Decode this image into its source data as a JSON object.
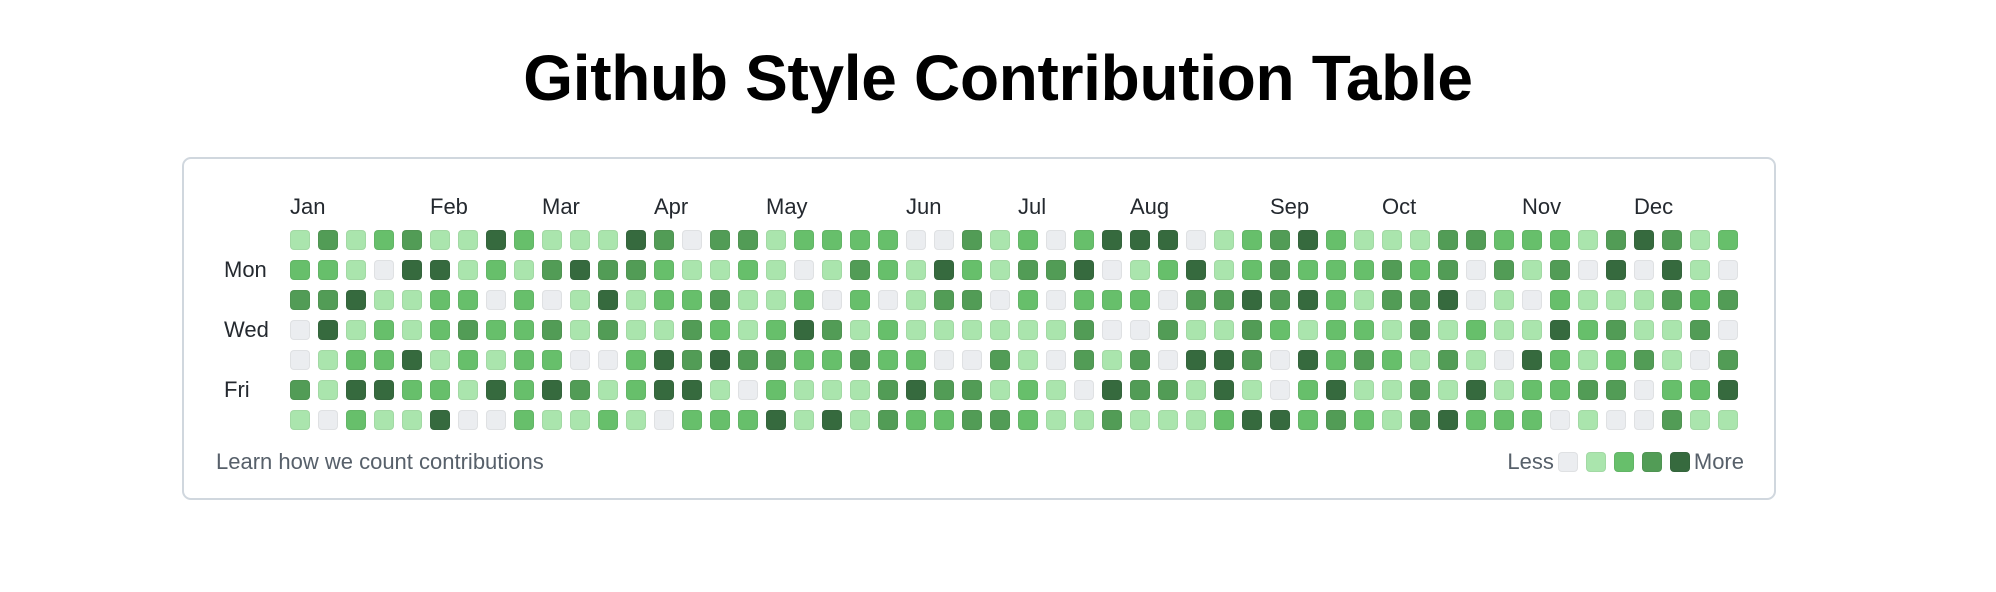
{
  "page": {
    "title": "Github Style Contribution Table"
  },
  "calendar": {
    "months": [
      {
        "label": "Jan",
        "col": 0
      },
      {
        "label": "Feb",
        "col": 5
      },
      {
        "label": "Mar",
        "col": 9
      },
      {
        "label": "Apr",
        "col": 13
      },
      {
        "label": "May",
        "col": 17
      },
      {
        "label": "Jun",
        "col": 22
      },
      {
        "label": "Jul",
        "col": 26
      },
      {
        "label": "Aug",
        "col": 30
      },
      {
        "label": "Sep",
        "col": 35
      },
      {
        "label": "Oct",
        "col": 39
      },
      {
        "label": "Nov",
        "col": 44
      },
      {
        "label": "Dec",
        "col": 48
      }
    ],
    "day_labels": [
      {
        "label": "Mon",
        "row": 1
      },
      {
        "label": "Wed",
        "row": 3
      },
      {
        "label": "Fri",
        "row": 5
      }
    ],
    "level_colors": [
      "#ebedf0",
      "#aae5ad",
      "#67bf6b",
      "#529c56",
      "#366a3e"
    ],
    "rows": [
      [
        1,
        3,
        1,
        2,
        3,
        1,
        1,
        4,
        2,
        1,
        1,
        1,
        4,
        3,
        0,
        3,
        3,
        1,
        2,
        2,
        2,
        2,
        0,
        0,
        3,
        1,
        2,
        0,
        2,
        4,
        4,
        4,
        0,
        1,
        2,
        3,
        4,
        2,
        1,
        1,
        1,
        3,
        3,
        2,
        2,
        2,
        1,
        3,
        4,
        3,
        1,
        2
      ],
      [
        2,
        2,
        1,
        0,
        4,
        4,
        1,
        2,
        1,
        3,
        4,
        3,
        3,
        2,
        1,
        1,
        2,
        1,
        0,
        1,
        3,
        2,
        1,
        4,
        2,
        1,
        3,
        3,
        4,
        0,
        1,
        2,
        4,
        1,
        2,
        3,
        2,
        2,
        2,
        3,
        2,
        3,
        0,
        3,
        1,
        3,
        0,
        4,
        0,
        4,
        1,
        0
      ],
      [
        3,
        3,
        4,
        1,
        1,
        2,
        2,
        0,
        2,
        0,
        1,
        4,
        1,
        2,
        2,
        3,
        1,
        1,
        2,
        0,
        2,
        0,
        1,
        3,
        3,
        0,
        2,
        0,
        2,
        2,
        2,
        0,
        3,
        3,
        4,
        3,
        4,
        2,
        1,
        3,
        3,
        4,
        0,
        1,
        0,
        2,
        1,
        1,
        1,
        3,
        2,
        3
      ],
      [
        0,
        4,
        1,
        2,
        1,
        2,
        3,
        2,
        2,
        3,
        1,
        3,
        1,
        1,
        3,
        2,
        1,
        2,
        4,
        3,
        1,
        2,
        1,
        1,
        1,
        1,
        1,
        1,
        3,
        0,
        0,
        3,
        1,
        1,
        3,
        2,
        1,
        2,
        2,
        1,
        3,
        1,
        2,
        1,
        1,
        4,
        2,
        3,
        1,
        1,
        3,
        0
      ],
      [
        0,
        1,
        2,
        2,
        4,
        1,
        2,
        1,
        2,
        2,
        0,
        0,
        2,
        4,
        3,
        4,
        3,
        3,
        2,
        2,
        3,
        2,
        2,
        0,
        0,
        3,
        1,
        0,
        3,
        1,
        3,
        0,
        4,
        4,
        3,
        0,
        4,
        2,
        3,
        2,
        1,
        3,
        1,
        0,
        4,
        2,
        1,
        2,
        3,
        1,
        0,
        3
      ],
      [
        3,
        1,
        4,
        4,
        2,
        2,
        1,
        4,
        2,
        4,
        3,
        1,
        2,
        4,
        4,
        1,
        0,
        2,
        1,
        1,
        1,
        3,
        4,
        3,
        3,
        1,
        2,
        1,
        0,
        4,
        3,
        3,
        1,
        4,
        1,
        0,
        2,
        4,
        1,
        1,
        3,
        1,
        4,
        1,
        2,
        2,
        3,
        3,
        0,
        2,
        2,
        4
      ],
      [
        1,
        0,
        2,
        1,
        1,
        4,
        0,
        0,
        2,
        1,
        1,
        2,
        1,
        0,
        2,
        2,
        2,
        4,
        1,
        4,
        1,
        3,
        2,
        2,
        3,
        3,
        2,
        1,
        1,
        3,
        1,
        1,
        1,
        2,
        4,
        4,
        2,
        3,
        2,
        1,
        3,
        4,
        2,
        2,
        2,
        0,
        1,
        0,
        0,
        3,
        1,
        1
      ]
    ]
  },
  "footer": {
    "link_label": "Learn how we count contributions",
    "legend_less": "Less",
    "legend_more": "More"
  }
}
